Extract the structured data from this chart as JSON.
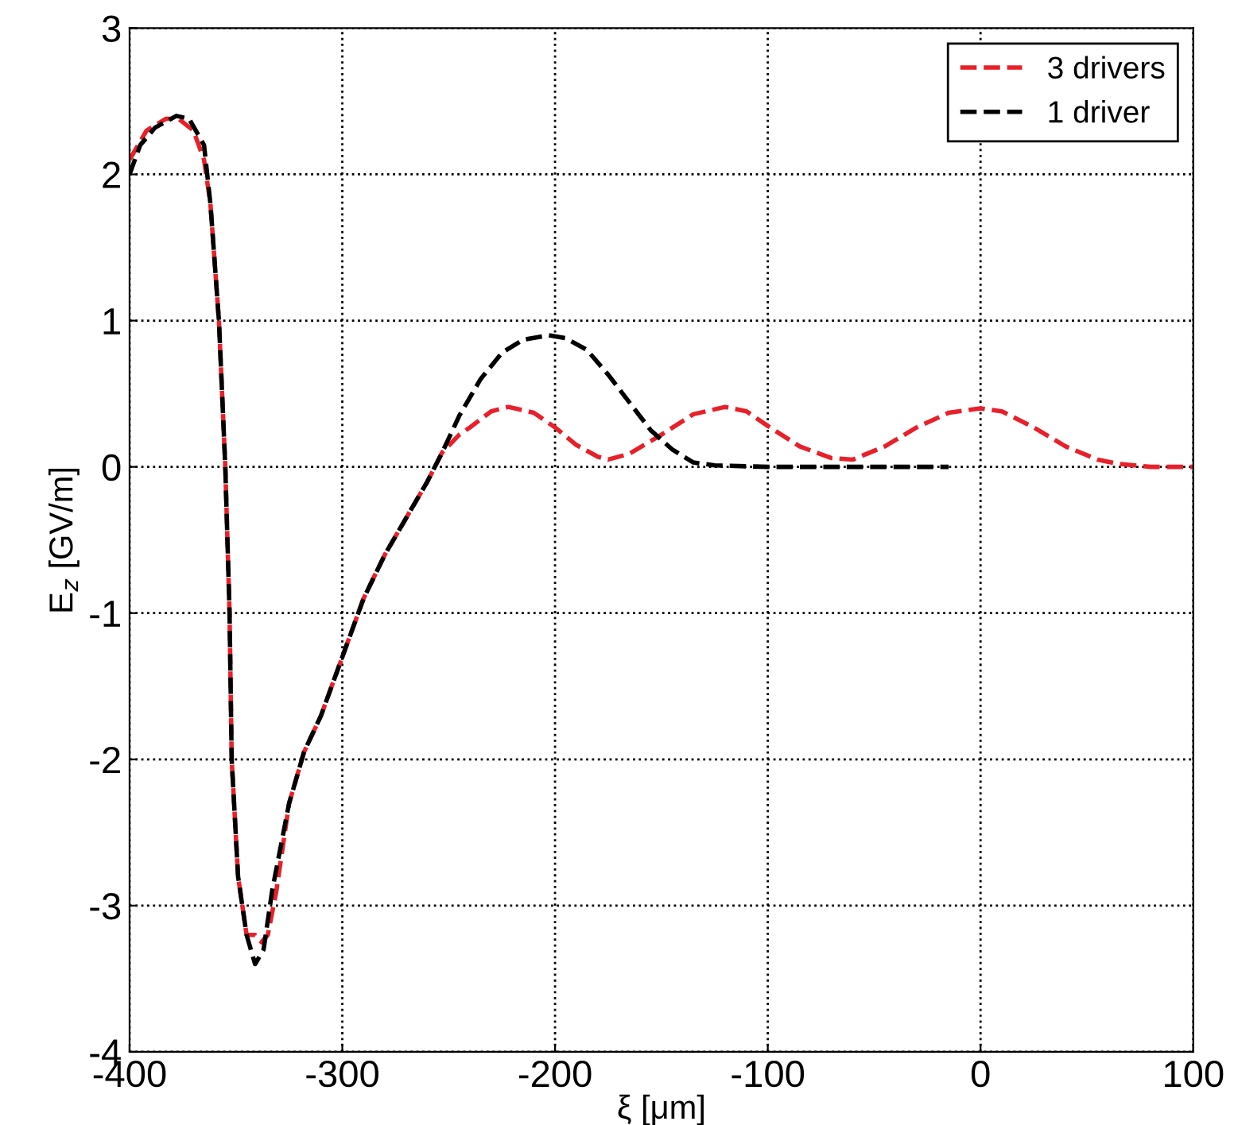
{
  "chart_data": {
    "type": "line",
    "xlabel": "ξ [μm]",
    "ylabel": "E$_{z}$ [GV/m]",
    "xlim": [
      -400,
      100
    ],
    "xticks": [
      -400,
      -300,
      -200,
      -100,
      0,
      100
    ],
    "ylim": [
      -4,
      3
    ],
    "yticks": [
      -4,
      -3,
      -2,
      -1,
      0,
      1,
      2,
      3
    ],
    "grid": true,
    "legend": "top right",
    "line_style": "dashed",
    "marker": "none",
    "series": [
      {
        "name": "3 drivers",
        "color": "#e8202a",
        "x": [
          -400,
          -392,
          -383,
          -377,
          -370,
          -365,
          -362,
          -358,
          -355,
          -353,
          -352,
          -349,
          -345,
          -341,
          -338,
          -335,
          -331,
          -325,
          -318,
          -310,
          -300,
          -290,
          -280,
          -270,
          -260,
          -253,
          -245,
          -240,
          -230,
          -222,
          -210,
          -200,
          -190,
          -180,
          -175,
          -165,
          -150,
          -135,
          -120,
          -110,
          -100,
          -85,
          -70,
          -60,
          -45,
          -30,
          -15,
          0,
          10,
          25,
          40,
          55,
          65,
          80,
          100
        ],
        "values": [
          2.1,
          2.3,
          2.38,
          2.38,
          2.3,
          2.1,
          1.8,
          1.0,
          0,
          -1,
          -2,
          -2.8,
          -3.2,
          -3.2,
          -3.25,
          -3.2,
          -2.9,
          -2.3,
          -1.95,
          -1.7,
          -1.3,
          -0.9,
          -0.6,
          -0.35,
          -0.1,
          0.1,
          0.22,
          0.27,
          0.38,
          0.41,
          0.37,
          0.27,
          0.15,
          0.07,
          0.05,
          0.09,
          0.22,
          0.36,
          0.41,
          0.38,
          0.28,
          0.14,
          0.06,
          0.05,
          0.14,
          0.27,
          0.37,
          0.4,
          0.38,
          0.27,
          0.14,
          0.05,
          0.02,
          0.0,
          0.0
        ]
      },
      {
        "name": "1 driver",
        "color": "#000000",
        "x": [
          -400,
          -395,
          -388,
          -378,
          -372,
          -365,
          -362,
          -358,
          -355,
          -353,
          -352,
          -349,
          -345,
          -341,
          -337,
          -333,
          -325,
          -318,
          -310,
          -300,
          -290,
          -280,
          -270,
          -260,
          -253,
          -245,
          -235,
          -225,
          -215,
          -203,
          -195,
          -185,
          -175,
          -165,
          -155,
          -145,
          -135,
          -125,
          -100,
          -60,
          -15
        ],
        "values": [
          2.0,
          2.2,
          2.32,
          2.4,
          2.38,
          2.2,
          1.8,
          1.0,
          0,
          -1,
          -2,
          -2.8,
          -3.2,
          -3.4,
          -3.3,
          -2.9,
          -2.3,
          -1.95,
          -1.7,
          -1.3,
          -0.9,
          -0.6,
          -0.35,
          -0.1,
          0.1,
          0.35,
          0.6,
          0.78,
          0.87,
          0.9,
          0.88,
          0.8,
          0.63,
          0.44,
          0.25,
          0.12,
          0.03,
          0.01,
          0,
          0,
          0
        ]
      }
    ]
  }
}
